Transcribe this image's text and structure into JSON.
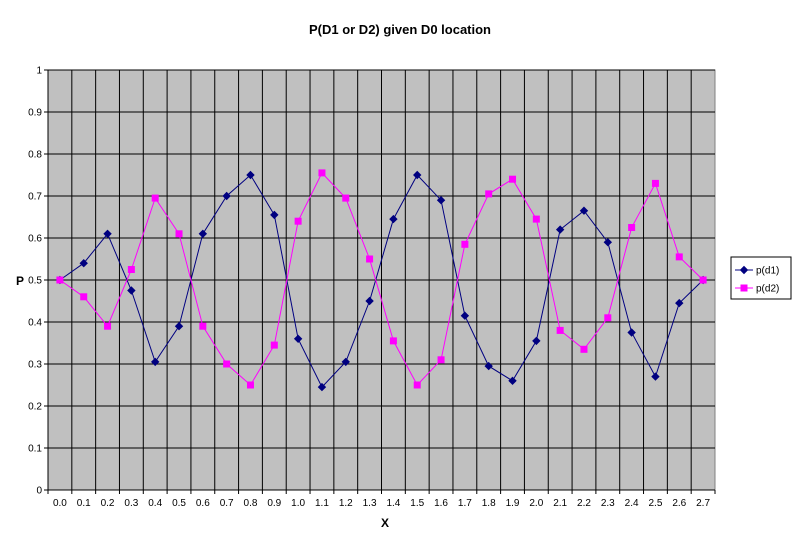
{
  "chart_data": {
    "type": "line",
    "title": "P(D1 or D2) given D0 location",
    "xlabel": "X",
    "ylabel": "P",
    "categories": [
      "0.0",
      "0.1",
      "0.2",
      "0.3",
      "0.4",
      "0.5",
      "0.6",
      "0.7",
      "0.8",
      "0.9",
      "1.0",
      "1.1",
      "1.2",
      "1.3",
      "1.4",
      "1.5",
      "1.6",
      "1.7",
      "1.8",
      "1.9",
      "2.0",
      "2.1",
      "2.2",
      "2.3",
      "2.4",
      "2.5",
      "2.6",
      "2.7"
    ],
    "y_ticks": [
      "0",
      "0.1",
      "0.2",
      "0.3",
      "0.4",
      "0.5",
      "0.6",
      "0.7",
      "0.8",
      "0.9",
      "1"
    ],
    "ylim": [
      0,
      1
    ],
    "grid": true,
    "legend_position": "right",
    "plot_background": "#c0c0c0",
    "series": [
      {
        "name": "p(d1)",
        "color": "#000080",
        "marker": "diamond",
        "values": [
          0.5,
          0.54,
          0.61,
          0.475,
          0.305,
          0.39,
          0.61,
          0.7,
          0.75,
          0.655,
          0.36,
          0.245,
          0.305,
          0.45,
          0.645,
          0.75,
          0.69,
          0.415,
          0.295,
          0.26,
          0.355,
          0.62,
          0.665,
          0.59,
          0.375,
          0.27,
          0.445,
          0.5
        ]
      },
      {
        "name": "p(d2)",
        "color": "#ff00ff",
        "marker": "square",
        "values": [
          0.5,
          0.46,
          0.39,
          0.525,
          0.695,
          0.61,
          0.39,
          0.3,
          0.25,
          0.345,
          0.64,
          0.755,
          0.695,
          0.55,
          0.355,
          0.25,
          0.31,
          0.585,
          0.705,
          0.74,
          0.645,
          0.38,
          0.335,
          0.41,
          0.625,
          0.73,
          0.555,
          0.5
        ]
      }
    ]
  }
}
